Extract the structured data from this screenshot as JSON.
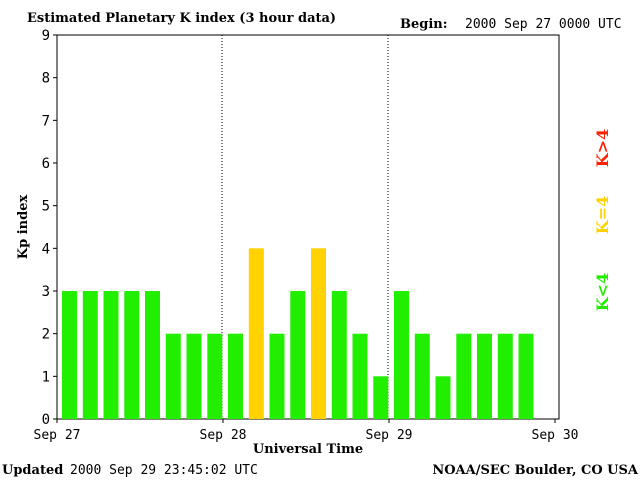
{
  "header": {
    "title": "Estimated Planetary K index (3 hour data)",
    "begin_label": "Begin:",
    "begin_value": "2000 Sep 27 0000 UTC"
  },
  "footer": {
    "updated_label": "Updated",
    "updated_value": "2000 Sep 29 23:45:02 UTC",
    "source": "NOAA/SEC Boulder, CO USA"
  },
  "legend": [
    {
      "label": "K>4",
      "color": "#ff2200"
    },
    {
      "label": "K=4",
      "color": "#ffd200"
    },
    {
      "label": "K<4",
      "color": "#22ee00"
    }
  ],
  "chart_data": {
    "type": "bar",
    "title": "Estimated Planetary K index (3 hour data)",
    "xlabel": "Universal Time",
    "ylabel": "Kp index",
    "ylim": [
      0,
      9
    ],
    "yticks": [
      0,
      1,
      2,
      3,
      4,
      5,
      6,
      7,
      8,
      9
    ],
    "xticks": [
      "Sep 27",
      "Sep 28",
      "Sep 29",
      "Sep 30"
    ],
    "bins_per_day": 8,
    "values": [
      3,
      3,
      3,
      3,
      3,
      2,
      2,
      2,
      2,
      4,
      2,
      3,
      4,
      3,
      2,
      1,
      3,
      2,
      1,
      2,
      2,
      2,
      2
    ],
    "colors": {
      "low": "#22ee00",
      "equal": "#ffd200",
      "high": "#ff2200"
    },
    "day_separators": "dotted"
  }
}
